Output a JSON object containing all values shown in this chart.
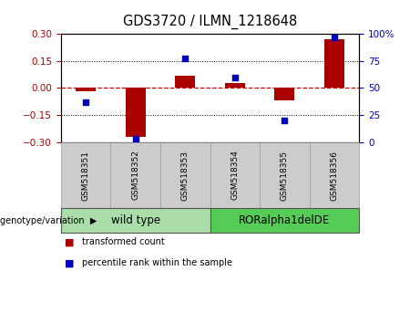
{
  "title": "GDS3720 / ILMN_1218648",
  "samples": [
    "GSM518351",
    "GSM518352",
    "GSM518353",
    "GSM518354",
    "GSM518355",
    "GSM518356"
  ],
  "red_values": [
    -0.02,
    -0.27,
    0.07,
    0.03,
    -0.07,
    0.27
  ],
  "blue_values": [
    37,
    3,
    77,
    60,
    20,
    97
  ],
  "ylim_left": [
    -0.3,
    0.3
  ],
  "ylim_right": [
    0,
    100
  ],
  "yticks_left": [
    -0.3,
    -0.15,
    0,
    0.15,
    0.3
  ],
  "yticks_right": [
    0,
    25,
    50,
    75,
    100
  ],
  "hlines": [
    -0.15,
    0,
    0.15
  ],
  "red_color": "#aa0000",
  "blue_color": "#0000bb",
  "zero_line_color": "#cc0000",
  "groups": [
    {
      "label": "wild type",
      "start": 0,
      "end": 3,
      "color": "#aaddaa"
    },
    {
      "label": "RORalpha1delDE",
      "start": 3,
      "end": 6,
      "color": "#55cc55"
    }
  ],
  "legend_labels": [
    "transformed count",
    "percentile rank within the sample"
  ],
  "genotype_label": "genotype/variation",
  "bar_width": 0.4,
  "title_fontsize": 10.5,
  "tick_fontsize": 7.5,
  "sample_fontsize": 6.5,
  "group_fontsize": 8.5,
  "legend_fontsize": 7
}
